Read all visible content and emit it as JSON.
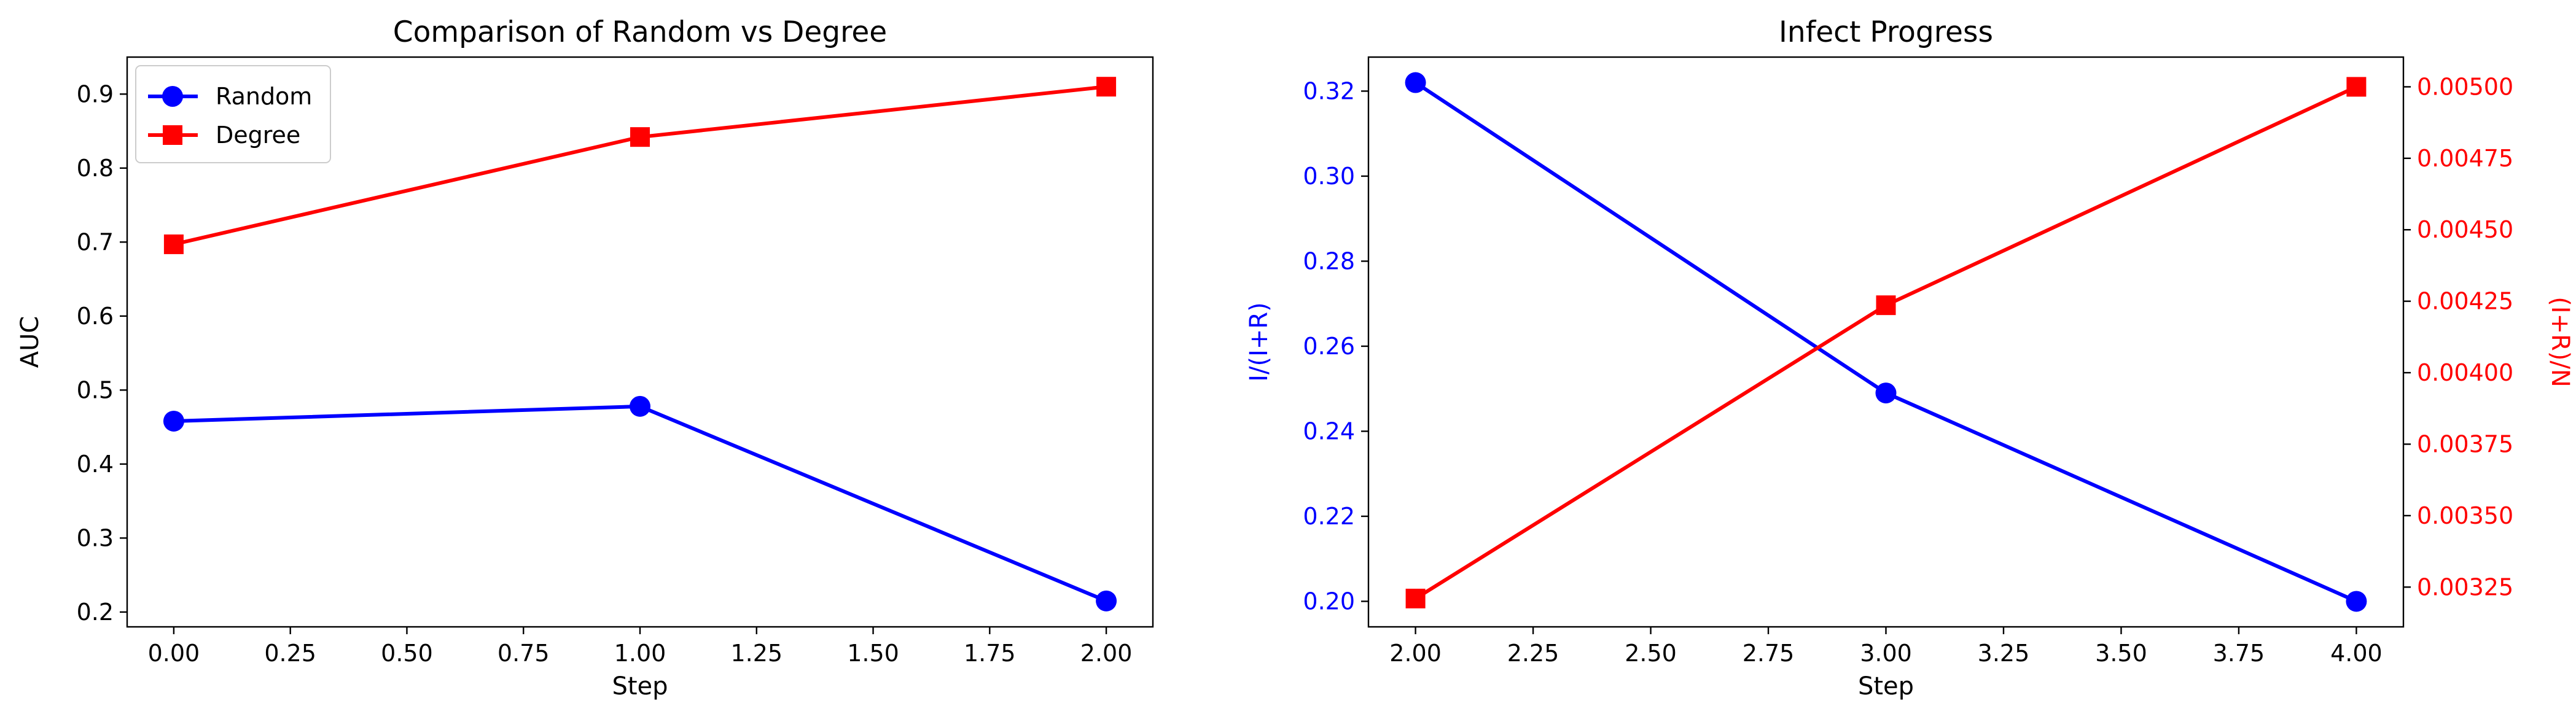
{
  "chart_data": [
    {
      "type": "line",
      "title": "Comparison of Random vs Degree",
      "xlabel": "Step",
      "ylabel": "AUC",
      "x": [
        0,
        1,
        2
      ],
      "xlim": [
        -0.1,
        2.1
      ],
      "ylim": [
        0.18,
        0.95
      ],
      "xticks": [
        0.0,
        0.25,
        0.5,
        0.75,
        1.0,
        1.25,
        1.5,
        1.75,
        2.0
      ],
      "xtick_labels": [
        "0.00",
        "0.25",
        "0.50",
        "0.75",
        "1.00",
        "1.25",
        "1.50",
        "1.75",
        "2.00"
      ],
      "yticks": [
        0.2,
        0.3,
        0.4,
        0.5,
        0.6,
        0.7,
        0.8,
        0.9
      ],
      "ytick_labels": [
        "0.2",
        "0.3",
        "0.4",
        "0.5",
        "0.6",
        "0.7",
        "0.8",
        "0.9"
      ],
      "grid": false,
      "legend": "top-left",
      "series": [
        {
          "name": "Random",
          "values": [
            0.458,
            0.478,
            0.215
          ],
          "color": "#0000ff",
          "marker": "circle"
        },
        {
          "name": "Degree",
          "values": [
            0.697,
            0.842,
            0.91
          ],
          "color": "#ff0000",
          "marker": "square"
        }
      ]
    },
    {
      "type": "line",
      "title": "Infect Progress",
      "xlabel": "Step",
      "ylabel": "I/(I+R)",
      "ylabel_right": "(I+R)/N",
      "x": [
        2,
        3,
        4
      ],
      "xlim": [
        1.9,
        4.1
      ],
      "ylim": [
        0.194,
        0.328
      ],
      "ylim_right": [
        0.003111,
        0.005104
      ],
      "xticks": [
        2.0,
        2.25,
        2.5,
        2.75,
        3.0,
        3.25,
        3.5,
        3.75,
        4.0
      ],
      "xtick_labels": [
        "2.00",
        "2.25",
        "2.50",
        "2.75",
        "3.00",
        "3.25",
        "3.50",
        "3.75",
        "4.00"
      ],
      "yticks": [
        0.2,
        0.22,
        0.24,
        0.26,
        0.28,
        0.3,
        0.32
      ],
      "ytick_labels": [
        "0.20",
        "0.22",
        "0.24",
        "0.26",
        "0.28",
        "0.30",
        "0.32"
      ],
      "yticks_right": [
        0.00325,
        0.0035,
        0.00375,
        0.004,
        0.00425,
        0.0045,
        0.00475,
        0.005
      ],
      "ytick_labels_right": [
        "0.00325",
        "0.00350",
        "0.00375",
        "0.00400",
        "0.00425",
        "0.00450",
        "0.00475",
        "0.00500"
      ],
      "grid": false,
      "series": [
        {
          "axis": "left",
          "values": [
            0.322,
            0.249,
            0.2
          ],
          "color": "#0000ff",
          "marker": "circle"
        },
        {
          "axis": "right",
          "values": [
            0.00321,
            0.004236,
            0.005
          ],
          "color": "#ff0000",
          "marker": "square"
        }
      ]
    }
  ]
}
